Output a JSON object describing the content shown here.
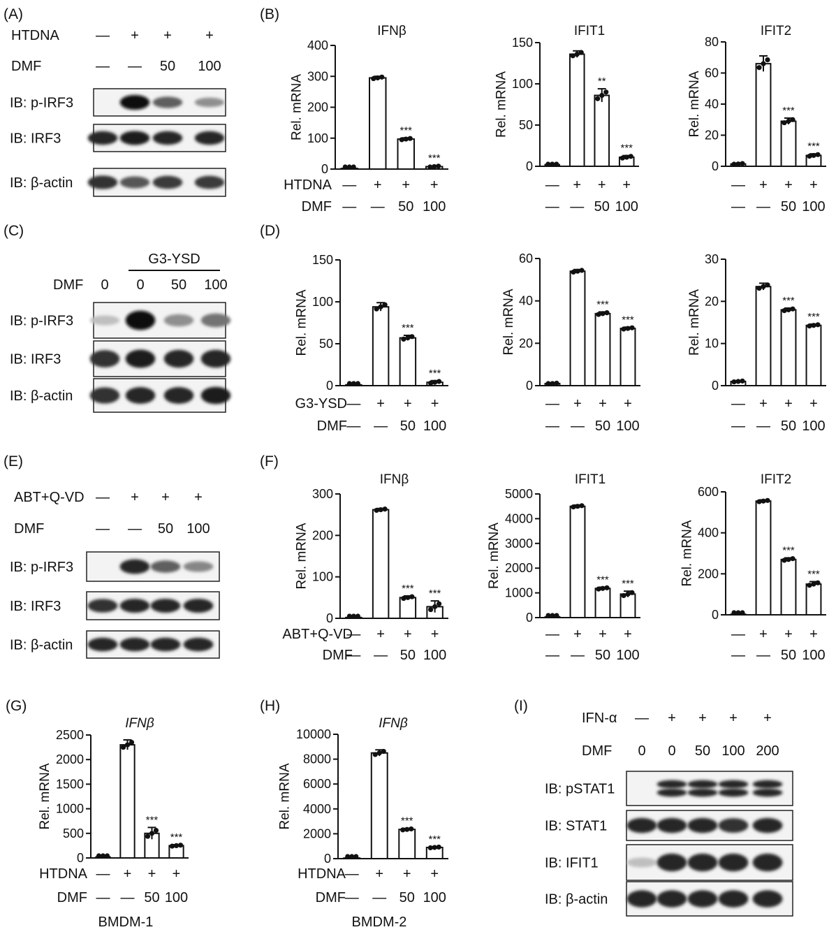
{
  "panel_labels": [
    "(A)",
    "(B)",
    "(C)",
    "(D)",
    "(E)",
    "(F)",
    "(G)",
    "(H)",
    "(I)"
  ],
  "blots": [
    {
      "id": "A",
      "panel_label": "(A)",
      "treatment_rows": [
        {
          "label": "HTDNA",
          "values": [
            "—",
            "+",
            "+",
            "+"
          ]
        },
        {
          "label": "DMF",
          "values": [
            "—",
            "—",
            "50",
            "100"
          ]
        }
      ],
      "blot_rows": [
        {
          "label": "IB: p-IRF3",
          "intensity": [
            0,
            1.0,
            0.55,
            0.3
          ]
        },
        {
          "label": "IB: IRF3",
          "intensity": [
            0.85,
            0.9,
            0.85,
            0.85
          ]
        },
        {
          "label": "IB: β-actin",
          "intensity": [
            0.8,
            0.6,
            0.75,
            0.75
          ]
        }
      ]
    },
    {
      "id": "C",
      "panel_label": "(C)",
      "group_label": "G3-YSD",
      "treatment_rows": [
        {
          "label": "DMF",
          "values": [
            "0",
            "0",
            "50",
            "100"
          ]
        }
      ],
      "blot_rows": [
        {
          "label": "IB: p-IRF3",
          "intensity": [
            0.05,
            1.0,
            0.3,
            0.45
          ]
        },
        {
          "label": "IB: IRF3",
          "intensity": [
            0.8,
            0.9,
            0.85,
            0.85
          ]
        },
        {
          "label": "IB: β-actin",
          "intensity": [
            0.8,
            0.85,
            0.85,
            0.9
          ]
        }
      ]
    },
    {
      "id": "E",
      "panel_label": "(E)",
      "treatment_rows": [
        {
          "label": "ABT+Q-VD",
          "values": [
            "—",
            "+",
            "+",
            "+"
          ]
        },
        {
          "label": "DMF",
          "values": [
            "—",
            "—",
            "50",
            "100"
          ]
        }
      ],
      "blot_rows": [
        {
          "label": "IB: p-IRF3",
          "intensity": [
            0,
            0.85,
            0.55,
            0.35
          ]
        },
        {
          "label": "IB: IRF3",
          "intensity": [
            0.8,
            0.85,
            0.85,
            0.85
          ]
        },
        {
          "label": "IB: β-actin",
          "intensity": [
            0.85,
            0.85,
            0.85,
            0.85
          ]
        }
      ]
    },
    {
      "id": "I",
      "panel_label": "(I)",
      "treatment_rows": [
        {
          "label": "IFN-α",
          "values": [
            "—",
            "+",
            "+",
            "+",
            "+"
          ]
        },
        {
          "label": "DMF",
          "values": [
            "0",
            "0",
            "50",
            "100",
            "200"
          ]
        }
      ],
      "blot_rows": [
        {
          "label": "IB: pSTAT1",
          "intensity": [
            0,
            0.85,
            0.85,
            0.85,
            0.85
          ],
          "double": true
        },
        {
          "label": "IB: STAT1",
          "intensity": [
            0.85,
            0.85,
            0.85,
            0.8,
            0.85
          ]
        },
        {
          "label": "IB: IFIT1",
          "intensity": [
            0.05,
            0.85,
            0.85,
            0.85,
            0.85
          ]
        },
        {
          "label": "IB: β-actin",
          "intensity": [
            0.85,
            0.85,
            0.85,
            0.85,
            0.85
          ]
        }
      ]
    }
  ],
  "chart_data": [
    {
      "id": "B1",
      "panel_label": "(B)",
      "type": "bar",
      "title": "IFNβ",
      "ylabel": "Rel. mRNA",
      "ylim": [
        0,
        400
      ],
      "yticks": [
        0,
        100,
        200,
        300,
        400
      ],
      "values": [
        2,
        295,
        97,
        8
      ],
      "errors": [
        1,
        5,
        4,
        3
      ],
      "significance": [
        "",
        "",
        "***",
        "***"
      ],
      "treatment_rows": [
        {
          "label": "HTDNA",
          "values": [
            "—",
            "+",
            "+",
            "+"
          ]
        },
        {
          "label": "DMF",
          "values": [
            "—",
            "—",
            "50",
            "100"
          ]
        }
      ]
    },
    {
      "id": "B2",
      "type": "bar",
      "title": "IFIT1",
      "ylabel": "Rel. mRNA",
      "ylim": [
        0,
        150
      ],
      "yticks": [
        0,
        50,
        100,
        150
      ],
      "values": [
        2,
        136,
        86,
        11
      ],
      "errors": [
        1,
        4,
        8,
        2
      ],
      "significance": [
        "",
        "",
        "**",
        "***"
      ],
      "treatment_rows": [
        {
          "label": "",
          "values": [
            "—",
            "+",
            "+",
            "+"
          ]
        },
        {
          "label": "",
          "values": [
            "—",
            "—",
            "50",
            "100"
          ]
        }
      ]
    },
    {
      "id": "B3",
      "type": "bar",
      "title": "IFIT2",
      "ylabel": "Rel. mRNA",
      "ylim": [
        0,
        80
      ],
      "yticks": [
        0,
        20,
        40,
        60,
        80
      ],
      "values": [
        1.5,
        66,
        29,
        7
      ],
      "errors": [
        0.5,
        5,
        2,
        1
      ],
      "significance": [
        "",
        "",
        "***",
        "***"
      ],
      "treatment_rows": [
        {
          "label": "",
          "values": [
            "—",
            "+",
            "+",
            "+"
          ]
        },
        {
          "label": "",
          "values": [
            "—",
            "—",
            "50",
            "100"
          ]
        }
      ]
    },
    {
      "id": "D1",
      "panel_label": "(D)",
      "type": "bar",
      "title": "",
      "ylabel": "Rel. mRNA",
      "ylim": [
        0,
        150
      ],
      "yticks": [
        0,
        50,
        100,
        150
      ],
      "values": [
        1,
        94,
        57,
        4
      ],
      "errors": [
        0.5,
        5,
        3,
        2
      ],
      "significance": [
        "",
        "",
        "***",
        "***"
      ],
      "treatment_rows": [
        {
          "label": "G3-YSD",
          "values": [
            "—",
            "+",
            "+",
            "+"
          ]
        },
        {
          "label": "DMF",
          "values": [
            "—",
            "—",
            "50",
            "100"
          ]
        }
      ]
    },
    {
      "id": "D2",
      "type": "bar",
      "title": "",
      "ylabel": "Rel. mRNA",
      "ylim": [
        0,
        60
      ],
      "yticks": [
        0,
        20,
        40,
        60
      ],
      "values": [
        1,
        54,
        34,
        27
      ],
      "errors": [
        0.3,
        0.8,
        0.8,
        0.6
      ],
      "significance": [
        "",
        "",
        "***",
        "***"
      ],
      "treatment_rows": [
        {
          "label": "",
          "values": [
            "—",
            "+",
            "+",
            "+"
          ]
        },
        {
          "label": "",
          "values": [
            "—",
            "—",
            "50",
            "100"
          ]
        }
      ]
    },
    {
      "id": "D3",
      "type": "bar",
      "title": "",
      "ylabel": "Rel. mRNA",
      "ylim": [
        0,
        30
      ],
      "yticks": [
        0,
        10,
        20,
        30
      ],
      "values": [
        1,
        23.5,
        18,
        14.3
      ],
      "errors": [
        0.2,
        0.8,
        0.4,
        0.3
      ],
      "significance": [
        "",
        "",
        "***",
        "***"
      ],
      "treatment_rows": [
        {
          "label": "",
          "values": [
            "—",
            "+",
            "+",
            "+"
          ]
        },
        {
          "label": "",
          "values": [
            "—",
            "—",
            "50",
            "100"
          ]
        }
      ]
    },
    {
      "id": "F1",
      "panel_label": "(F)",
      "type": "bar",
      "title": "IFNβ",
      "ylabel": "Rel. mRNA",
      "ylim": [
        0,
        300
      ],
      "yticks": [
        0,
        100,
        200,
        300
      ],
      "values": [
        2,
        262,
        50,
        28
      ],
      "errors": [
        1,
        3,
        4,
        14
      ],
      "significance": [
        "",
        "",
        "***",
        "***"
      ],
      "treatment_rows": [
        {
          "label": "ABT+Q-VD",
          "values": [
            "—",
            "+",
            "+",
            "+"
          ]
        },
        {
          "label": "DMF",
          "values": [
            "—",
            "—",
            "50",
            "100"
          ]
        }
      ]
    },
    {
      "id": "F2",
      "type": "bar",
      "title": "IFIT1",
      "ylabel": "Rel. mRNA",
      "ylim": [
        0,
        5000
      ],
      "yticks": [
        0,
        1000,
        2000,
        3000,
        4000,
        5000
      ],
      "values": [
        30,
        4500,
        1180,
        950
      ],
      "errors": [
        10,
        50,
        50,
        120
      ],
      "significance": [
        "",
        "",
        "***",
        "***"
      ],
      "treatment_rows": [
        {
          "label": "",
          "values": [
            "—",
            "+",
            "+",
            "+"
          ]
        },
        {
          "label": "",
          "values": [
            "—",
            "—",
            "50",
            "100"
          ]
        }
      ]
    },
    {
      "id": "F3",
      "type": "bar",
      "title": "IFIT2",
      "ylabel": "Rel. mRNA",
      "ylim": [
        0,
        600
      ],
      "yticks": [
        0,
        200,
        400,
        600
      ],
      "values": [
        3,
        555,
        270,
        150
      ],
      "errors": [
        1,
        6,
        8,
        12
      ],
      "significance": [
        "",
        "",
        "***",
        "***"
      ],
      "treatment_rows": [
        {
          "label": "",
          "values": [
            "—",
            "+",
            "+",
            "+"
          ]
        },
        {
          "label": "",
          "values": [
            "—",
            "—",
            "50",
            "100"
          ]
        }
      ]
    },
    {
      "id": "G",
      "panel_label": "(G)",
      "type": "bar",
      "title": "IFNβ",
      "title_italic": true,
      "ylabel": "Rel. mRNA",
      "ylim": [
        0,
        2500
      ],
      "yticks": [
        0,
        500,
        1000,
        1500,
        2000,
        2500
      ],
      "values": [
        20,
        2300,
        500,
        250
      ],
      "errors": [
        5,
        100,
        120,
        20
      ],
      "significance": [
        "",
        "",
        "***",
        "***"
      ],
      "treatment_rows": [
        {
          "label": "HTDNA",
          "values": [
            "—",
            "+",
            "+",
            "+"
          ]
        },
        {
          "label": "DMF",
          "values": [
            "—",
            "—",
            "50",
            "100"
          ]
        }
      ],
      "caption": "BMDM-1"
    },
    {
      "id": "H",
      "panel_label": "(H)",
      "type": "bar",
      "title": "IFNβ",
      "title_italic": true,
      "ylabel": "Rel. mRNA",
      "ylim": [
        0,
        10000
      ],
      "yticks": [
        0,
        2000,
        4000,
        6000,
        8000,
        10000
      ],
      "values": [
        50,
        8500,
        2350,
        900
      ],
      "errors": [
        20,
        250,
        80,
        60
      ],
      "significance": [
        "",
        "",
        "***",
        "***"
      ],
      "treatment_rows": [
        {
          "label": "HTDNA",
          "values": [
            "—",
            "+",
            "+",
            "+"
          ]
        },
        {
          "label": "DMF",
          "values": [
            "—",
            "—",
            "50",
            "100"
          ]
        }
      ],
      "caption": "BMDM-2"
    }
  ]
}
